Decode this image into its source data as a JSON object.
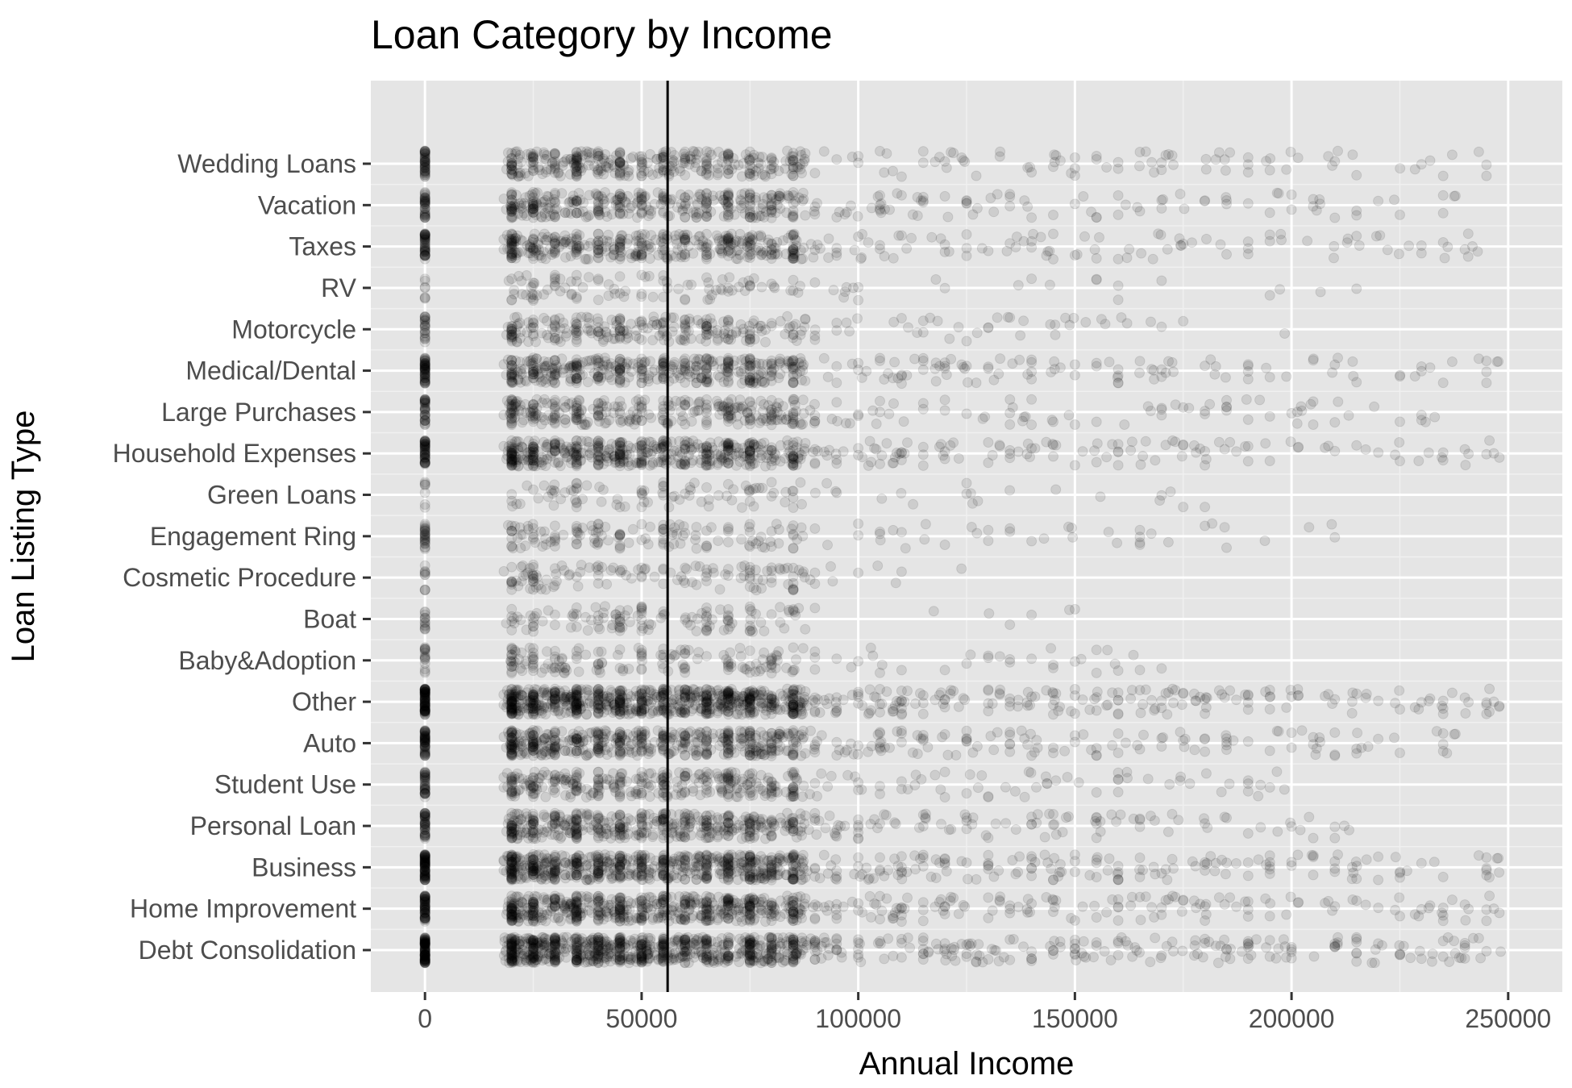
{
  "chart_data": {
    "type": "scatter",
    "title": "Loan Category by Income",
    "xlabel": "Annual Income",
    "ylabel": "Loan Listing Type",
    "xlim": [
      -12500,
      262500
    ],
    "x_ticks": [
      "0",
      "50000",
      "100000",
      "150000",
      "200000",
      "250000"
    ],
    "x_tick_values": [
      0,
      50000,
      100000,
      150000,
      200000,
      250000
    ],
    "categories": [
      "Debt Consolidation",
      "Home Improvement",
      "Business",
      "Personal Loan",
      "Student Use",
      "Auto",
      "Other",
      "Baby&Adoption",
      "Boat",
      "Cosmetic Procedure",
      "Engagement Ring",
      "Green Loans",
      "Household Expenses",
      "Large Purchases",
      "Medical/Dental",
      "Motorcycle",
      "RV",
      "Taxes",
      "Vacation",
      "Wedding Loans"
    ],
    "reference_line_x": 56000,
    "point_alpha": 0.1,
    "grid": true,
    "legend": "none",
    "density": [
      {
        "category": "Debt Consolidation",
        "density": 1.0,
        "min": 0,
        "max": 250000
      },
      {
        "category": "Home Improvement",
        "density": 0.7,
        "min": 0,
        "max": 250000
      },
      {
        "category": "Business",
        "density": 0.8,
        "min": 0,
        "max": 250000
      },
      {
        "category": "Personal Loan",
        "density": 0.5,
        "min": 0,
        "max": 215000
      },
      {
        "category": "Student Use",
        "density": 0.35,
        "min": 0,
        "max": 200000
      },
      {
        "category": "Auto",
        "density": 0.6,
        "min": 0,
        "max": 240000
      },
      {
        "category": "Other",
        "density": 0.95,
        "min": 0,
        "max": 250000
      },
      {
        "category": "Baby&Adoption",
        "density": 0.15,
        "min": 0,
        "max": 175000
      },
      {
        "category": "Boat",
        "density": 0.1,
        "min": 0,
        "max": 150000
      },
      {
        "category": "Cosmetic Procedure",
        "density": 0.1,
        "min": 0,
        "max": 125000
      },
      {
        "category": "Engagement Ring",
        "density": 0.15,
        "min": 0,
        "max": 215000
      },
      {
        "category": "Green Loans",
        "density": 0.07,
        "min": 0,
        "max": 185000
      },
      {
        "category": "Household Expenses",
        "density": 0.6,
        "min": 0,
        "max": 250000
      },
      {
        "category": "Large Purchases",
        "density": 0.35,
        "min": 0,
        "max": 235000
      },
      {
        "category": "Medical/Dental",
        "density": 0.5,
        "min": 0,
        "max": 250000
      },
      {
        "category": "Motorcycle",
        "density": 0.25,
        "min": 0,
        "max": 200000
      },
      {
        "category": "RV",
        "density": 0.08,
        "min": 0,
        "max": 220000
      },
      {
        "category": "Taxes",
        "density": 0.45,
        "min": 0,
        "max": 245000
      },
      {
        "category": "Vacation",
        "density": 0.4,
        "min": 0,
        "max": 240000
      },
      {
        "category": "Wedding Loans",
        "density": 0.4,
        "min": 0,
        "max": 250000
      }
    ]
  },
  "colors": {
    "panel": "#e5e5e5",
    "grid_major": "#ffffff",
    "grid_minor": "#f0f0f0",
    "point": "#000000",
    "reference_line": "#000000",
    "tick_label": "#4d4d4d"
  }
}
